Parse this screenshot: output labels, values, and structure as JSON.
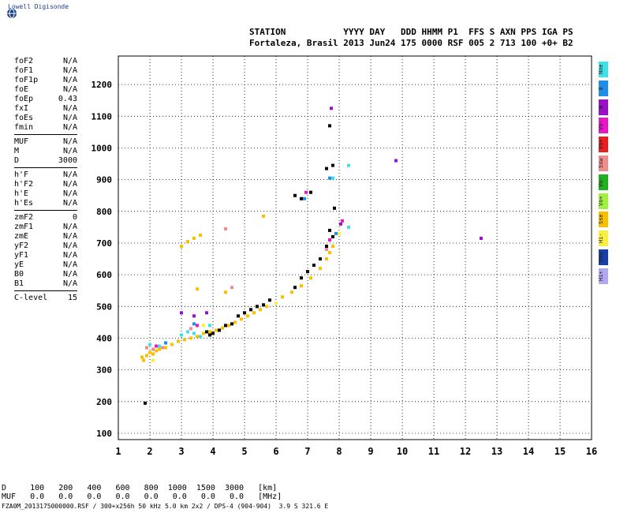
{
  "logo": {
    "text": "Lowell Digisonde"
  },
  "header": {
    "line1": "STATION           YYYY DAY   DDD HHMM P1  FFS S AXN PPS IGA PS",
    "line2": "Fortaleza, Brasil 2013 Jun24 175 0000 RSF 005 2 713 100 +0+ B2"
  },
  "params": {
    "group1": [
      {
        "label": "foF2",
        "value": "N/A"
      },
      {
        "label": "foF1",
        "value": "N/A"
      },
      {
        "label": "foF1p",
        "value": "N/A"
      },
      {
        "label": "foE",
        "value": "N/A"
      },
      {
        "label": "foEp",
        "value": "0.43"
      },
      {
        "label": "fxI",
        "value": "N/A"
      },
      {
        "label": "foEs",
        "value": "N/A"
      },
      {
        "label": "fmin",
        "value": "N/A"
      }
    ],
    "group2": [
      {
        "label": "MUF",
        "value": "N/A"
      },
      {
        "label": "M",
        "value": "N/A"
      },
      {
        "label": "D",
        "value": "3000"
      }
    ],
    "group3": [
      {
        "label": "h'F",
        "value": "N/A"
      },
      {
        "label": "h'F2",
        "value": "N/A"
      },
      {
        "label": "h'E",
        "value": "N/A"
      },
      {
        "label": "h'Es",
        "value": "N/A"
      }
    ],
    "group4": [
      {
        "label": "zmF2",
        "value": "0"
      },
      {
        "label": "zmF1",
        "value": "N/A"
      },
      {
        "label": "zmE",
        "value": "N/A"
      },
      {
        "label": "yF2",
        "value": "N/A"
      },
      {
        "label": "yF1",
        "value": "N/A"
      },
      {
        "label": "yE",
        "value": "N/A"
      },
      {
        "label": "B0",
        "value": "N/A"
      },
      {
        "label": "B1",
        "value": "N/A"
      }
    ],
    "group5": [
      {
        "label": "C-level",
        "value": "15"
      }
    ]
  },
  "legend": [
    {
      "label": "Nne",
      "color": "#40e0e8"
    },
    {
      "label": "E",
      "color": "#1e8ee8"
    },
    {
      "label": "W",
      "color": "#9a10c8"
    },
    {
      "label": "Vo-",
      "color": "#e818c8"
    },
    {
      "label": "Vo+",
      "color": "#e82020"
    },
    {
      "label": "Ssw",
      "color": "#f08c8c"
    },
    {
      "label": "Vo-",
      "color": "#20b020"
    },
    {
      "label": "Vo+",
      "color": "#a0f040"
    },
    {
      "label": "Sse",
      "color": "#f8c000"
    },
    {
      "label": "Hi-",
      "color": "#f8f040"
    },
    {
      "label": "Nnw",
      "color": "#1840a8"
    },
    {
      "label": "Hi+",
      "color": "#b0a8f0"
    }
  ],
  "dmuf": {
    "line1": "D     100   200   400   600   800  1000  1500  3000   [km]",
    "line2": "MUF   0.0   0.0   0.0   0.0   0.0   0.0   0.0   0.0   [MHz]"
  },
  "footer": {
    "text": "FZA0M_2013175000000.RSF / 300+x256h 50 kHz 5.0 km 2x2 / DPS-4 (904-904)  3.9 S 321.6 E"
  },
  "chart_data": {
    "type": "scatter",
    "xlim": [
      1,
      16
    ],
    "ylim": [
      80,
      1290
    ],
    "x_ticks": [
      1,
      2,
      3,
      4,
      5,
      6,
      7,
      8,
      9,
      10,
      11,
      12,
      13,
      14,
      15,
      16
    ],
    "y_ticks": [
      100,
      200,
      300,
      400,
      500,
      600,
      700,
      800,
      900,
      1000,
      1100,
      1200
    ],
    "grid": true,
    "series": [
      {
        "color": "#f8c000",
        "points": [
          [
            1.75,
            340
          ],
          [
            1.8,
            330
          ],
          [
            1.9,
            345
          ],
          [
            2.0,
            355
          ],
          [
            2.1,
            350
          ],
          [
            2.2,
            360
          ],
          [
            2.3,
            365
          ],
          [
            2.5,
            370
          ],
          [
            2.7,
            380
          ],
          [
            2.9,
            390
          ],
          [
            3.1,
            395
          ],
          [
            3.3,
            400
          ],
          [
            3.5,
            405
          ],
          [
            3.7,
            415
          ],
          [
            3.9,
            420
          ],
          [
            4.1,
            425
          ],
          [
            4.3,
            432
          ],
          [
            4.5,
            440
          ],
          [
            4.7,
            450
          ],
          [
            4.9,
            460
          ],
          [
            5.1,
            470
          ],
          [
            5.3,
            480
          ],
          [
            5.5,
            490
          ],
          [
            5.7,
            500
          ],
          [
            6.2,
            530
          ],
          [
            6.5,
            545
          ],
          [
            6.8,
            565
          ],
          [
            7.1,
            590
          ],
          [
            7.4,
            620
          ],
          [
            7.6,
            650
          ],
          [
            7.7,
            670
          ],
          [
            7.8,
            690
          ],
          [
            3.0,
            690
          ],
          [
            3.2,
            705
          ],
          [
            3.4,
            715
          ],
          [
            3.6,
            725
          ],
          [
            4.4,
            545
          ],
          [
            3.5,
            555
          ],
          [
            5.6,
            785
          ]
        ]
      },
      {
        "color": "#000000",
        "points": [
          [
            4.0,
            415
          ],
          [
            4.2,
            425
          ],
          [
            4.4,
            440
          ],
          [
            4.6,
            445
          ],
          [
            4.8,
            470
          ],
          [
            5.0,
            480
          ],
          [
            5.2,
            490
          ],
          [
            5.4,
            500
          ],
          [
            5.6,
            505
          ],
          [
            5.8,
            520
          ],
          [
            6.6,
            560
          ],
          [
            6.8,
            590
          ],
          [
            7.0,
            610
          ],
          [
            7.2,
            630
          ],
          [
            7.4,
            650
          ],
          [
            7.6,
            690
          ],
          [
            7.8,
            720
          ],
          [
            7.7,
            740
          ],
          [
            7.8,
            945
          ],
          [
            7.6,
            935
          ],
          [
            6.8,
            840
          ],
          [
            6.6,
            850
          ],
          [
            7.1,
            860
          ],
          [
            7.85,
            810
          ],
          [
            3.8,
            420
          ],
          [
            3.9,
            410
          ],
          [
            7.7,
            1070
          ],
          [
            1.85,
            195
          ]
        ]
      },
      {
        "color": "#40e0e8",
        "points": [
          [
            2.0,
            380
          ],
          [
            2.3,
            375
          ],
          [
            3.0,
            410
          ],
          [
            3.2,
            420
          ],
          [
            3.4,
            415
          ],
          [
            3.6,
            405
          ],
          [
            3.9,
            440
          ],
          [
            7.8,
            905
          ],
          [
            8.3,
            750
          ],
          [
            8.3,
            945
          ]
        ]
      },
      {
        "color": "#f08c8c",
        "points": [
          [
            1.9,
            370
          ],
          [
            2.1,
            365
          ],
          [
            2.4,
            370
          ],
          [
            3.3,
            430
          ],
          [
            7.6,
            680
          ],
          [
            4.6,
            560
          ],
          [
            4.4,
            745
          ]
        ]
      },
      {
        "color": "#9a10c8",
        "points": [
          [
            3.0,
            480
          ],
          [
            3.4,
            470
          ],
          [
            3.8,
            480
          ],
          [
            7.75,
            1125
          ],
          [
            8.05,
            760
          ],
          [
            12.5,
            715
          ],
          [
            9.8,
            960
          ]
        ]
      },
      {
        "color": "#e818c8",
        "points": [
          [
            2.2,
            375
          ],
          [
            3.5,
            440
          ],
          [
            7.7,
            710
          ],
          [
            6.95,
            860
          ],
          [
            8.1,
            770
          ]
        ]
      },
      {
        "color": "#1e8ee8",
        "points": [
          [
            2.5,
            385
          ],
          [
            3.4,
            445
          ],
          [
            6.9,
            840
          ],
          [
            7.7,
            905
          ],
          [
            7.9,
            730
          ]
        ]
      },
      {
        "color": "#f8f040",
        "points": [
          [
            2.1,
            330
          ],
          [
            3.7,
            440
          ],
          [
            6.0,
            510
          ],
          [
            8.0,
            730
          ]
        ]
      }
    ]
  }
}
